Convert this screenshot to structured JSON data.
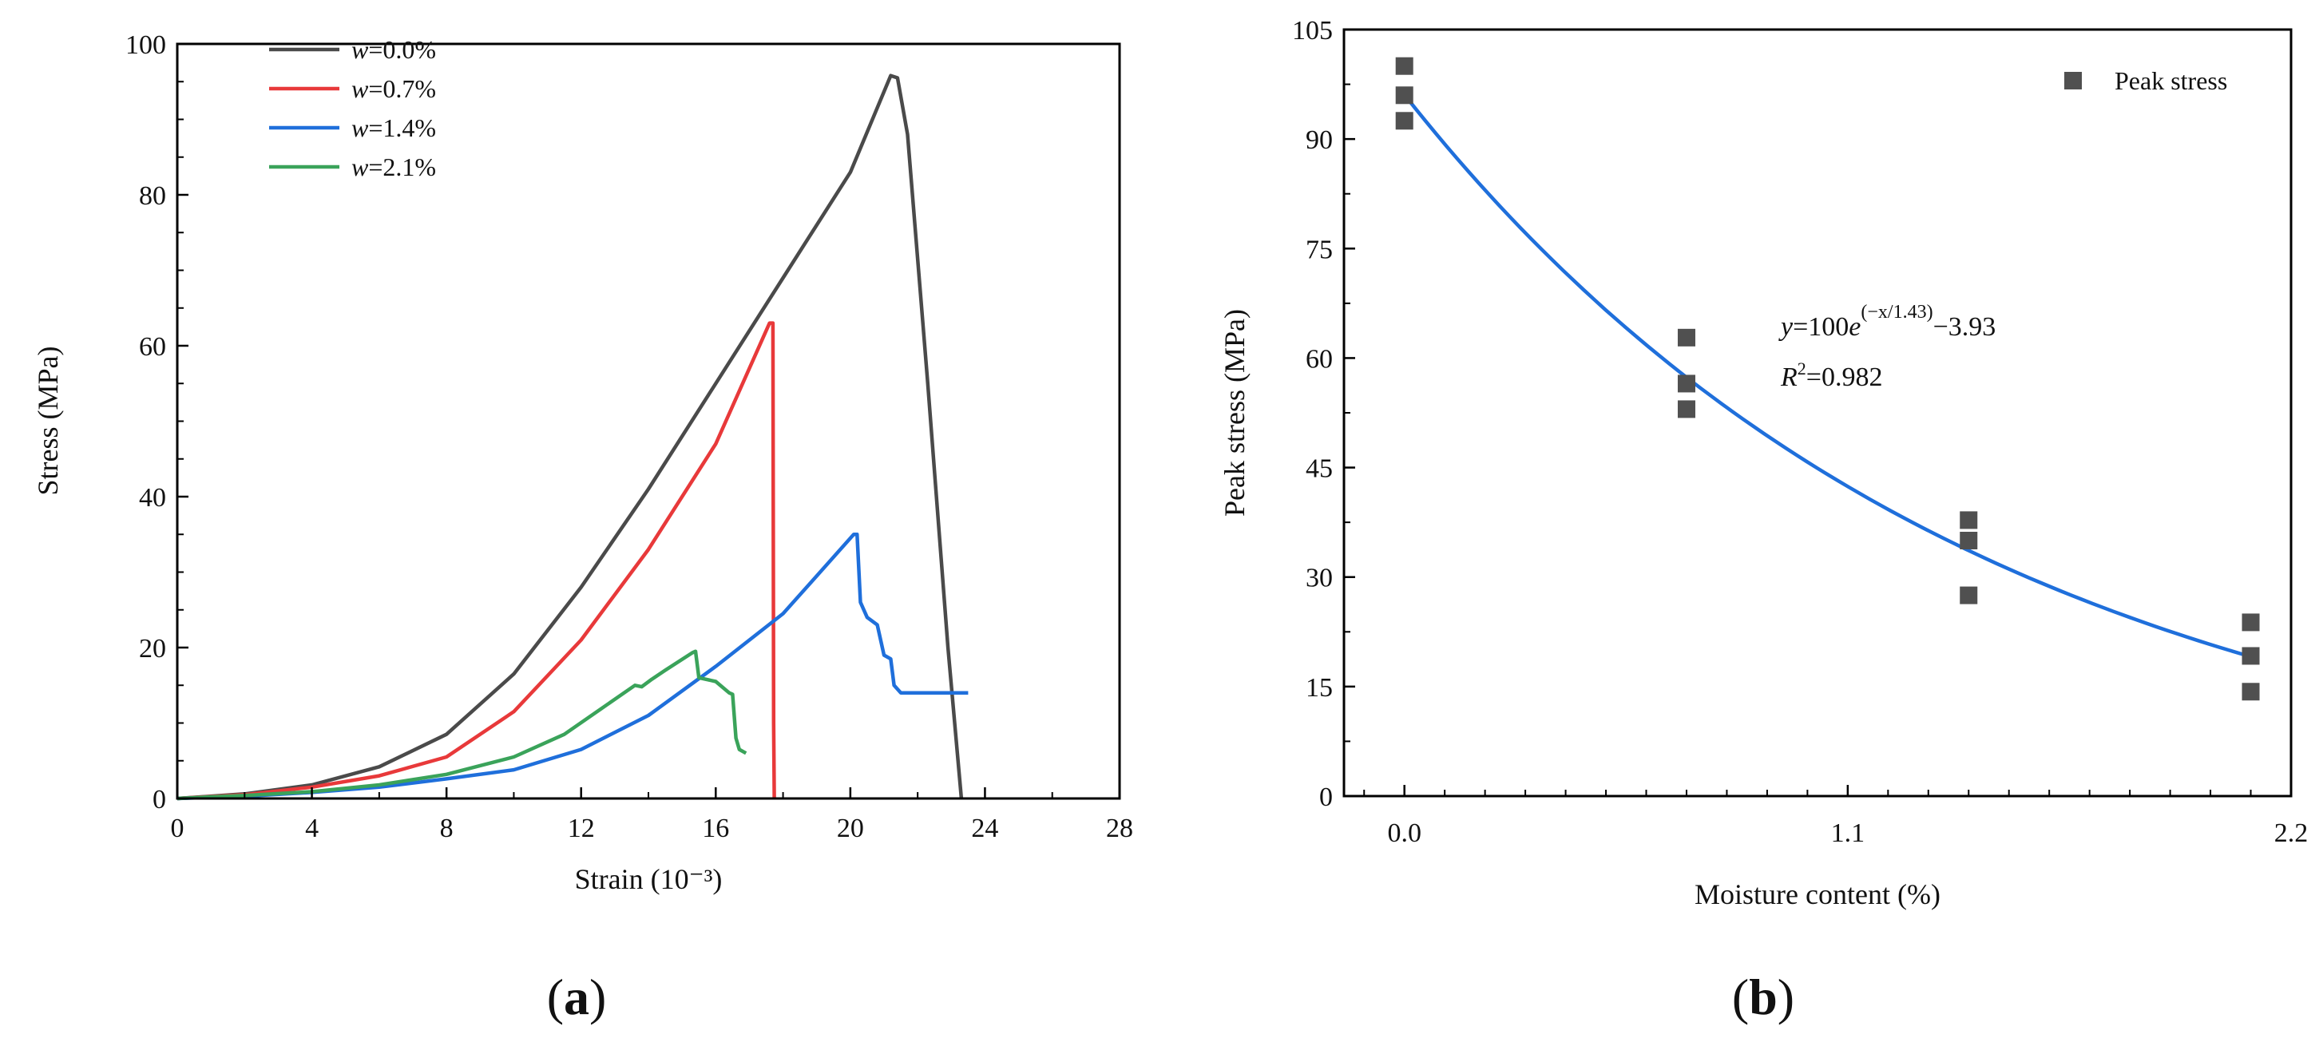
{
  "chart_data": [
    {
      "panel": "(a)",
      "panel_letter": "a",
      "type": "line",
      "xlabel": "Strain (10⁻³)",
      "ylabel": "Stress (MPa)",
      "xlim": [
        0,
        28
      ],
      "ylim": [
        0,
        100
      ],
      "xticks": [
        "0",
        "4",
        "8",
        "12",
        "16",
        "20",
        "24",
        "28"
      ],
      "yticks": [
        "0",
        "20",
        "40",
        "60",
        "80",
        "100"
      ],
      "grid": false,
      "legend_position": "top-left",
      "series": [
        {
          "name": "w=0.0%",
          "legend_var": "w",
          "legend_value": "=0.0%",
          "color": "#4a4a4a",
          "points": [
            [
              0,
              0
            ],
            [
              2,
              0.6
            ],
            [
              4,
              1.8
            ],
            [
              6,
              4.2
            ],
            [
              8,
              8.5
            ],
            [
              10,
              16.5
            ],
            [
              12,
              28
            ],
            [
              14,
              41
            ],
            [
              16,
              55
            ],
            [
              18,
              69
            ],
            [
              20,
              83
            ],
            [
              21.2,
              95.8
            ],
            [
              21.4,
              95.5
            ],
            [
              21.7,
              88
            ],
            [
              22.3,
              55
            ],
            [
              22.9,
              20
            ],
            [
              23.3,
              0
            ]
          ]
        },
        {
          "name": "w=0.7%",
          "legend_var": "w",
          "legend_value": "=0.7%",
          "color": "#e8393a",
          "points": [
            [
              0,
              0
            ],
            [
              2,
              0.5
            ],
            [
              4,
              1.5
            ],
            [
              6,
              3
            ],
            [
              8,
              5.5
            ],
            [
              10,
              11.5
            ],
            [
              12,
              21
            ],
            [
              14,
              33
            ],
            [
              16,
              47
            ],
            [
              17.6,
              63
            ],
            [
              17.7,
              63
            ],
            [
              17.72,
              10
            ],
            [
              17.74,
              0
            ]
          ]
        },
        {
          "name": "w=1.4%",
          "legend_var": "w",
          "legend_value": "=1.4%",
          "color": "#1f6fdb",
          "points": [
            [
              0,
              0
            ],
            [
              2,
              0.3
            ],
            [
              4,
              0.8
            ],
            [
              6,
              1.5
            ],
            [
              8,
              2.6
            ],
            [
              10,
              3.8
            ],
            [
              12,
              6.5
            ],
            [
              14,
              11
            ],
            [
              16,
              17.5
            ],
            [
              18,
              24.5
            ],
            [
              20.1,
              35
            ],
            [
              20.2,
              35
            ],
            [
              20.3,
              26
            ],
            [
              20.5,
              24
            ],
            [
              20.8,
              23
            ],
            [
              21,
              19
            ],
            [
              21.2,
              18.5
            ],
            [
              21.3,
              15
            ],
            [
              21.5,
              14
            ],
            [
              23.5,
              14
            ]
          ]
        },
        {
          "name": "w=2.1%",
          "legend_var": "w",
          "legend_value": "=2.1%",
          "color": "#3aa35a",
          "points": [
            [
              0,
              0
            ],
            [
              2,
              0.4
            ],
            [
              4,
              0.9
            ],
            [
              6,
              1.8
            ],
            [
              8,
              3.2
            ],
            [
              10,
              5.5
            ],
            [
              11.5,
              8.5
            ],
            [
              13.6,
              15
            ],
            [
              13.8,
              14.8
            ],
            [
              14.1,
              15.8
            ],
            [
              14.5,
              17
            ],
            [
              15.3,
              19.3
            ],
            [
              15.4,
              19.5
            ],
            [
              15.5,
              16
            ],
            [
              16,
              15.5
            ],
            [
              16.4,
              14
            ],
            [
              16.5,
              13.8
            ],
            [
              16.6,
              8
            ],
            [
              16.7,
              6.5
            ],
            [
              16.9,
              6
            ]
          ]
        }
      ]
    },
    {
      "panel": "(b)",
      "panel_letter": "b",
      "type": "scatter",
      "xlabel": "Moisture content (%)",
      "ylabel": "Peak stress (MPa)",
      "xlim": [
        -0.15,
        2.2
      ],
      "ylim": [
        0,
        105
      ],
      "xticks": [
        "0.0",
        "1.1",
        "2.2"
      ],
      "xtick_values": [
        0,
        1.1,
        2.2
      ],
      "yticks": [
        "0",
        "15",
        "30",
        "45",
        "60",
        "75",
        "90",
        "105"
      ],
      "grid": false,
      "legend_position": "top-right",
      "series": [
        {
          "name": "Peak stress",
          "color": "#505050",
          "points": [
            [
              0,
              100
            ],
            [
              0,
              96
            ],
            [
              0,
              92.5
            ],
            [
              0.7,
              62.8
            ],
            [
              0.7,
              56.5
            ],
            [
              0.7,
              53
            ],
            [
              1.4,
              37.8
            ],
            [
              1.4,
              35
            ],
            [
              1.4,
              27.5
            ],
            [
              2.1,
              23.8
            ],
            [
              2.1,
              19.2
            ],
            [
              2.1,
              14.3
            ]
          ]
        }
      ],
      "fit": {
        "color": "#1f6fdb",
        "a": 100,
        "t": 1.43,
        "c": -3.93,
        "x_range": [
          0,
          2.1
        ]
      },
      "equation": {
        "y_var": "y",
        "eq": "=100",
        "e_var": "e",
        "exponent": "(−x/1.43)",
        "tail": "−3.93"
      },
      "r2": {
        "var": "R",
        "sup": "2",
        "value": "=0.982"
      }
    }
  ]
}
